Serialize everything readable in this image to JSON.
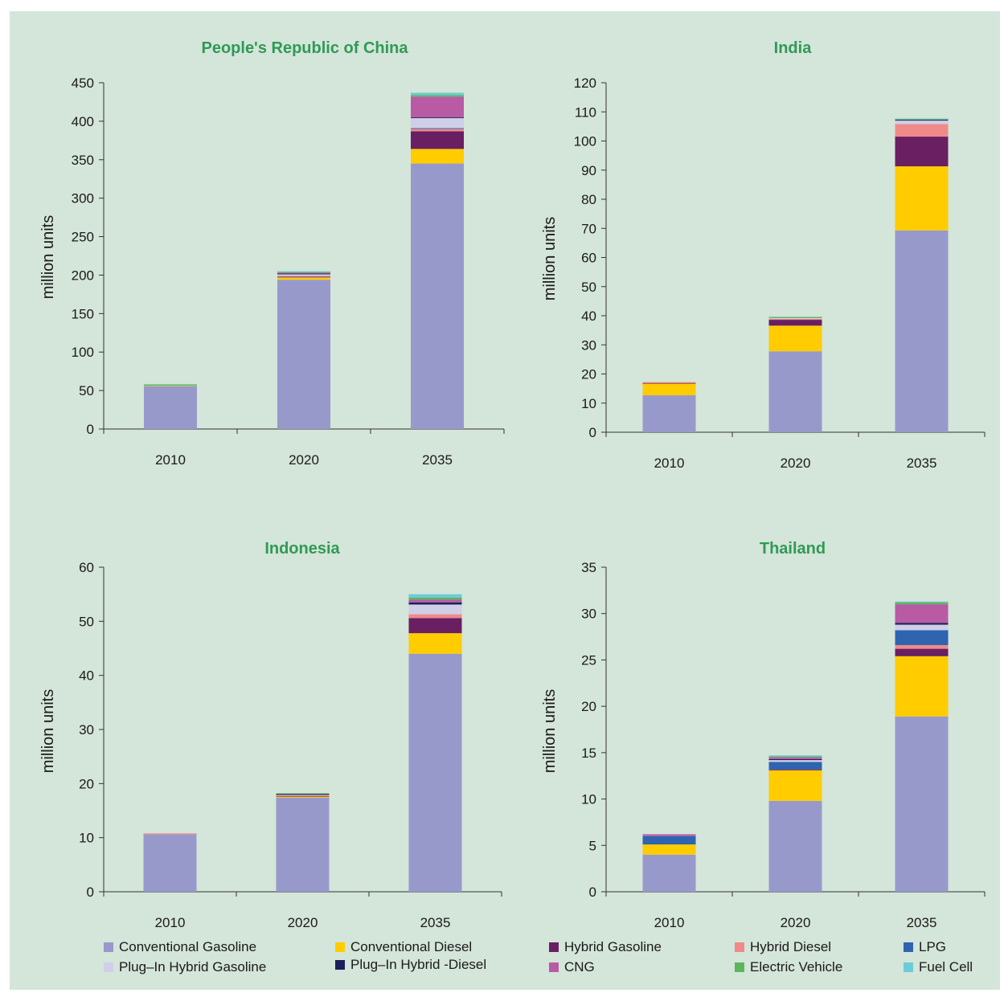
{
  "colors": {
    "Conventional Gasoline": "#9899cb",
    "Conventional Diesel": "#ffcc00",
    "Hybrid Gasoline": "#6a1f62",
    "Hybrid Diesel": "#f08a88",
    "LPG": "#2e64b0",
    "Plug-In Hybrid Gasoline": "#cfcfe8",
    "Plug-In Hybrid Diesel": "#1c1f5a",
    "CNG": "#b95aa5",
    "Electric Vehicle": "#5db55d",
    "Fuel Cell": "#6ccbd8"
  },
  "legend": [
    {
      "label": "Conventional Gasoline",
      "key": "Conventional Gasoline"
    },
    {
      "label": "Conventional Diesel",
      "key": "Conventional Diesel"
    },
    {
      "label": "Hybrid Gasoline",
      "key": "Hybrid Gasoline"
    },
    {
      "label": "Hybrid Diesel",
      "key": "Hybrid Diesel"
    },
    {
      "label": "LPG",
      "key": "LPG"
    },
    {
      "label": "Plug–In Hybrid Gasoline",
      "key": "Plug-In Hybrid Gasoline"
    },
    {
      "label": "Plug–In Hybrid -Diesel",
      "key": "Plug-In Hybrid Diesel"
    },
    {
      "label": "CNG",
      "key": "CNG"
    },
    {
      "label": "Electric Vehicle",
      "key": "Electric Vehicle"
    },
    {
      "label": "Fuel Cell",
      "key": "Fuel Cell"
    }
  ],
  "chart_data": [
    {
      "type": "bar",
      "stacked": true,
      "title": "People's Republic of China",
      "xlabel": "",
      "ylabel": "million units",
      "ylim": [
        0,
        450
      ],
      "yticks": [
        0,
        50,
        100,
        150,
        200,
        250,
        300,
        350,
        400,
        450
      ],
      "categories": [
        "2010",
        "2020",
        "2035"
      ],
      "series": [
        {
          "name": "Conventional Gasoline",
          "values": [
            56,
            194,
            345
          ]
        },
        {
          "name": "Conventional Diesel",
          "values": [
            0.5,
            3,
            19
          ]
        },
        {
          "name": "Hybrid Gasoline",
          "values": [
            0,
            1,
            23
          ]
        },
        {
          "name": "Hybrid Diesel",
          "values": [
            0,
            1,
            3
          ]
        },
        {
          "name": "LPG",
          "values": [
            0,
            0,
            1
          ]
        },
        {
          "name": "Plug-In Hybrid Gasoline",
          "values": [
            0,
            2,
            13
          ]
        },
        {
          "name": "Plug-In Hybrid Diesel",
          "values": [
            0,
            1,
            1
          ]
        },
        {
          "name": "CNG",
          "values": [
            0,
            1,
            27
          ]
        },
        {
          "name": "Electric Vehicle",
          "values": [
            1,
            1,
            2
          ]
        },
        {
          "name": "Fuel Cell",
          "values": [
            1,
            1,
            3
          ]
        }
      ]
    },
    {
      "type": "bar",
      "stacked": true,
      "title": "India",
      "xlabel": "",
      "ylabel": "million units",
      "ylim": [
        0,
        120
      ],
      "yticks": [
        0,
        10,
        20,
        30,
        40,
        50,
        60,
        70,
        80,
        90,
        100,
        110,
        120
      ],
      "categories": [
        "2010",
        "2020",
        "2035"
      ],
      "series": [
        {
          "name": "Conventional Gasoline",
          "values": [
            12.7,
            27.8,
            69.3
          ]
        },
        {
          "name": "Conventional Diesel",
          "values": [
            4.0,
            8.8,
            22.0
          ]
        },
        {
          "name": "Hybrid Gasoline",
          "values": [
            0.2,
            2.0,
            10.2
          ]
        },
        {
          "name": "Hybrid Diesel",
          "values": [
            0.3,
            0.3,
            4.3
          ]
        },
        {
          "name": "LPG",
          "values": [
            0,
            0,
            0
          ]
        },
        {
          "name": "Plug-In Hybrid Gasoline",
          "values": [
            0,
            0.3,
            1.2
          ]
        },
        {
          "name": "Plug-In Hybrid Diesel",
          "values": [
            0,
            0,
            0.3
          ]
        },
        {
          "name": "CNG",
          "values": [
            0,
            0,
            0
          ]
        },
        {
          "name": "Electric Vehicle",
          "values": [
            0,
            0.4,
            0.2
          ]
        },
        {
          "name": "Fuel Cell",
          "values": [
            0,
            0,
            0.2
          ]
        }
      ]
    },
    {
      "type": "bar",
      "stacked": true,
      "title": "Indonesia",
      "xlabel": "",
      "ylabel": "million units",
      "ylim": [
        0,
        60
      ],
      "yticks": [
        0,
        10,
        20,
        30,
        40,
        50,
        60
      ],
      "categories": [
        "2010",
        "2020",
        "2035"
      ],
      "series": [
        {
          "name": "Conventional Gasoline",
          "values": [
            10.6,
            17.4,
            44.0
          ]
        },
        {
          "name": "Conventional Diesel",
          "values": [
            0,
            0.2,
            3.8
          ]
        },
        {
          "name": "Hybrid Gasoline",
          "values": [
            0,
            0.1,
            2.8
          ]
        },
        {
          "name": "Hybrid Diesel",
          "values": [
            0.2,
            0.1,
            0.7
          ]
        },
        {
          "name": "LPG",
          "values": [
            0,
            0,
            0
          ]
        },
        {
          "name": "Plug-In Hybrid Gasoline",
          "values": [
            0,
            0.1,
            1.8
          ]
        },
        {
          "name": "Plug-In Hybrid Diesel",
          "values": [
            0,
            0.2,
            0.4
          ]
        },
        {
          "name": "CNG",
          "values": [
            0,
            0,
            0.5
          ]
        },
        {
          "name": "Electric Vehicle",
          "values": [
            0,
            0.1,
            0.4
          ]
        },
        {
          "name": "Fuel Cell",
          "values": [
            0,
            0,
            0.6
          ]
        }
      ]
    },
    {
      "type": "bar",
      "stacked": true,
      "title": "Thailand",
      "xlabel": "",
      "ylabel": "million units",
      "ylim": [
        0,
        35
      ],
      "yticks": [
        0,
        5,
        10,
        15,
        20,
        25,
        30,
        35
      ],
      "categories": [
        "2010",
        "2020",
        "2035"
      ],
      "series": [
        {
          "name": "Conventional Gasoline",
          "values": [
            4.0,
            9.8,
            18.9
          ]
        },
        {
          "name": "Conventional Diesel",
          "values": [
            1.1,
            3.3,
            6.5
          ]
        },
        {
          "name": "Hybrid Gasoline",
          "values": [
            0,
            0.1,
            0.8
          ]
        },
        {
          "name": "Hybrid Diesel",
          "values": [
            0,
            0,
            0.4
          ]
        },
        {
          "name": "LPG",
          "values": [
            0.9,
            0.8,
            1.6
          ]
        },
        {
          "name": "Plug-In Hybrid Gasoline",
          "values": [
            0,
            0.2,
            0.6
          ]
        },
        {
          "name": "Plug-In Hybrid Diesel",
          "values": [
            0,
            0.1,
            0.2
          ]
        },
        {
          "name": "CNG",
          "values": [
            0.2,
            0.2,
            2.0
          ]
        },
        {
          "name": "Electric Vehicle",
          "values": [
            0,
            0.1,
            0.2
          ]
        },
        {
          "name": "Fuel Cell",
          "values": [
            0,
            0.1,
            0.1
          ]
        }
      ]
    }
  ]
}
